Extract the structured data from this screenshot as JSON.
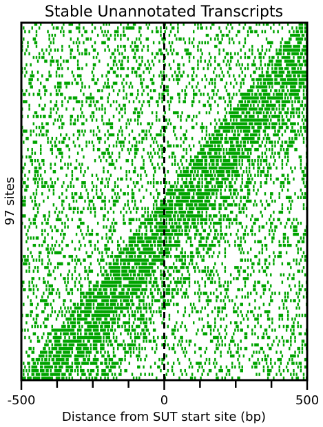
{
  "chart_data": {
    "type": "heatmap",
    "title": "Stable Unannotated Transcripts",
    "xlabel": "Distance from SUT start site (bp)",
    "ylabel": "97 sites",
    "xlim": [
      -500,
      500
    ],
    "x_ticks_labeled": [
      -500,
      0,
      500
    ],
    "x_ticks_minor": [
      -375,
      -250,
      -125,
      125,
      250,
      375
    ],
    "rows": 97,
    "reference_line_x": 0,
    "reference_line_style": "dashed",
    "grid": false,
    "colors": {
      "signal": "#00a400",
      "background": "#ffffff",
      "axis": "#000000"
    },
    "note_pattern": "sparse reads everywhere; dense band shifts diagonally from about x=-500 at the bottom rows to about x=+450 at the upper rows"
  }
}
